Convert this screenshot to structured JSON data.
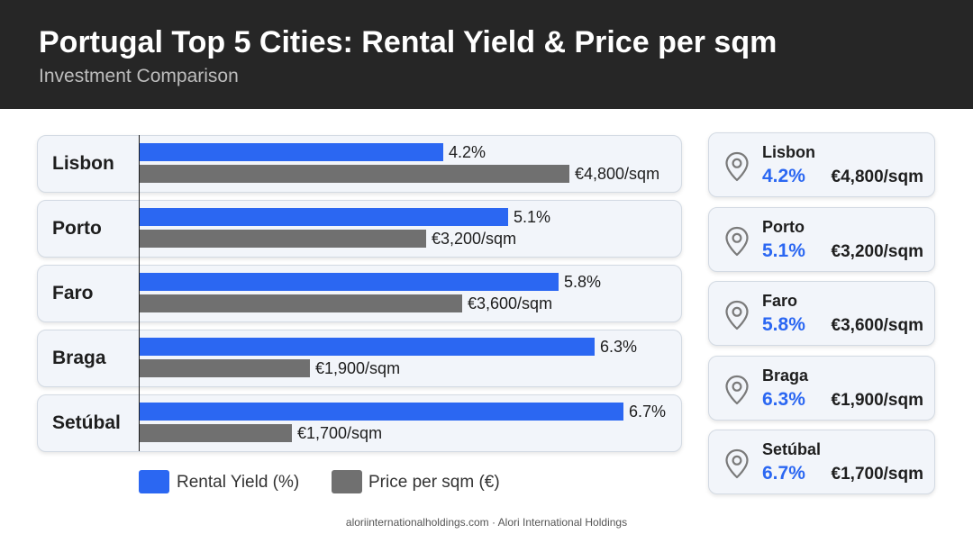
{
  "header": {
    "title": "Portugal Top 5 Cities: Rental Yield & Price per sqm",
    "subtitle": "Investment Comparison"
  },
  "chart_data": {
    "type": "bar",
    "orientation": "horizontal",
    "categories": [
      "Lisbon",
      "Porto",
      "Faro",
      "Braga",
      "Setúbal"
    ],
    "series": [
      {
        "name": "Rental Yield (%)",
        "values": [
          4.2,
          5.1,
          5.8,
          6.3,
          6.7
        ],
        "labels": [
          "4.2%",
          "5.1%",
          "5.8%",
          "6.3%",
          "6.7%"
        ],
        "color": "#2b67f2"
      },
      {
        "name": "Price per sqm (€)",
        "values": [
          4800,
          3200,
          3600,
          1900,
          1700
        ],
        "labels": [
          "€4,800/sqm",
          "€3,200/sqm",
          "€3,600/sqm",
          "€1,900/sqm",
          "€1,700/sqm"
        ],
        "color": "#707070"
      }
    ],
    "legend": "bottom",
    "grid": false
  },
  "cards": [
    {
      "city": "Lisbon",
      "yield": "4.2%",
      "price": "€4,800/sqm"
    },
    {
      "city": "Porto",
      "yield": "5.1%",
      "price": "€3,200/sqm"
    },
    {
      "city": "Faro",
      "yield": "5.8%",
      "price": "€3,600/sqm"
    },
    {
      "city": "Braga",
      "yield": "6.3%",
      "price": "€1,900/sqm"
    },
    {
      "city": "Setúbal",
      "yield": "6.7%",
      "price": "€1,700/sqm"
    }
  ],
  "icons": {
    "card_icon": "map-pin-icon"
  },
  "footer": {
    "text": "aloriinternationalholdings.com · Alori International Holdings"
  }
}
